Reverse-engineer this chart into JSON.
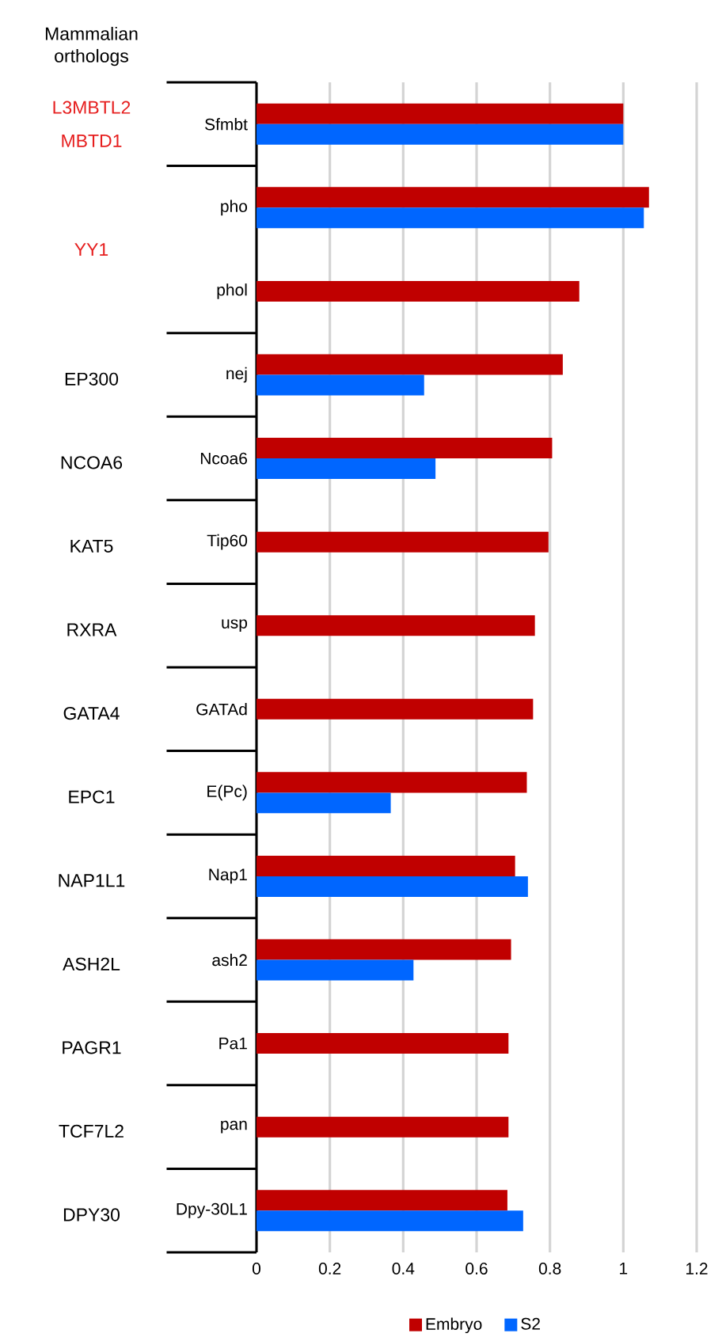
{
  "chart_data": {
    "type": "bar",
    "orientation": "horizontal",
    "categories": [
      "Sfmbt",
      "pho",
      "phol",
      "nej",
      "Ncoa6",
      "Tip60",
      "usp",
      "GATAd",
      "E(Pc)",
      "Nap1",
      "ash2",
      "Pa1",
      "pan",
      "Dpy-30L1"
    ],
    "series": [
      {
        "name": "Embryo",
        "color": "#c00000",
        "values": [
          1.0,
          1.07,
          0.88,
          0.835,
          0.806,
          0.796,
          0.759,
          0.754,
          0.737,
          0.705,
          0.694,
          0.687,
          0.687,
          0.684
        ]
      },
      {
        "name": "S2",
        "color": "#0066ff",
        "values": [
          1.0,
          1.056,
          null,
          0.457,
          0.488,
          null,
          null,
          null,
          0.366,
          0.74,
          0.428,
          null,
          null,
          0.727
        ]
      }
    ],
    "xlim": [
      0,
      1.2
    ],
    "xticks": [
      0,
      0.2,
      0.4,
      0.6,
      0.8,
      1,
      1.2
    ],
    "grid": "x",
    "legend": "bottom",
    "annotations": [
      "Mammalian orthologs",
      "L3MBTL2",
      "MBTD1",
      "YY1",
      "EP300",
      "NCOA6",
      "KAT5",
      "RXRA",
      "GATA4",
      "EPC1",
      "NAP1L1",
      "ASH2L",
      "PAGR1",
      "TCF7L2",
      "DPY30"
    ]
  }
}
